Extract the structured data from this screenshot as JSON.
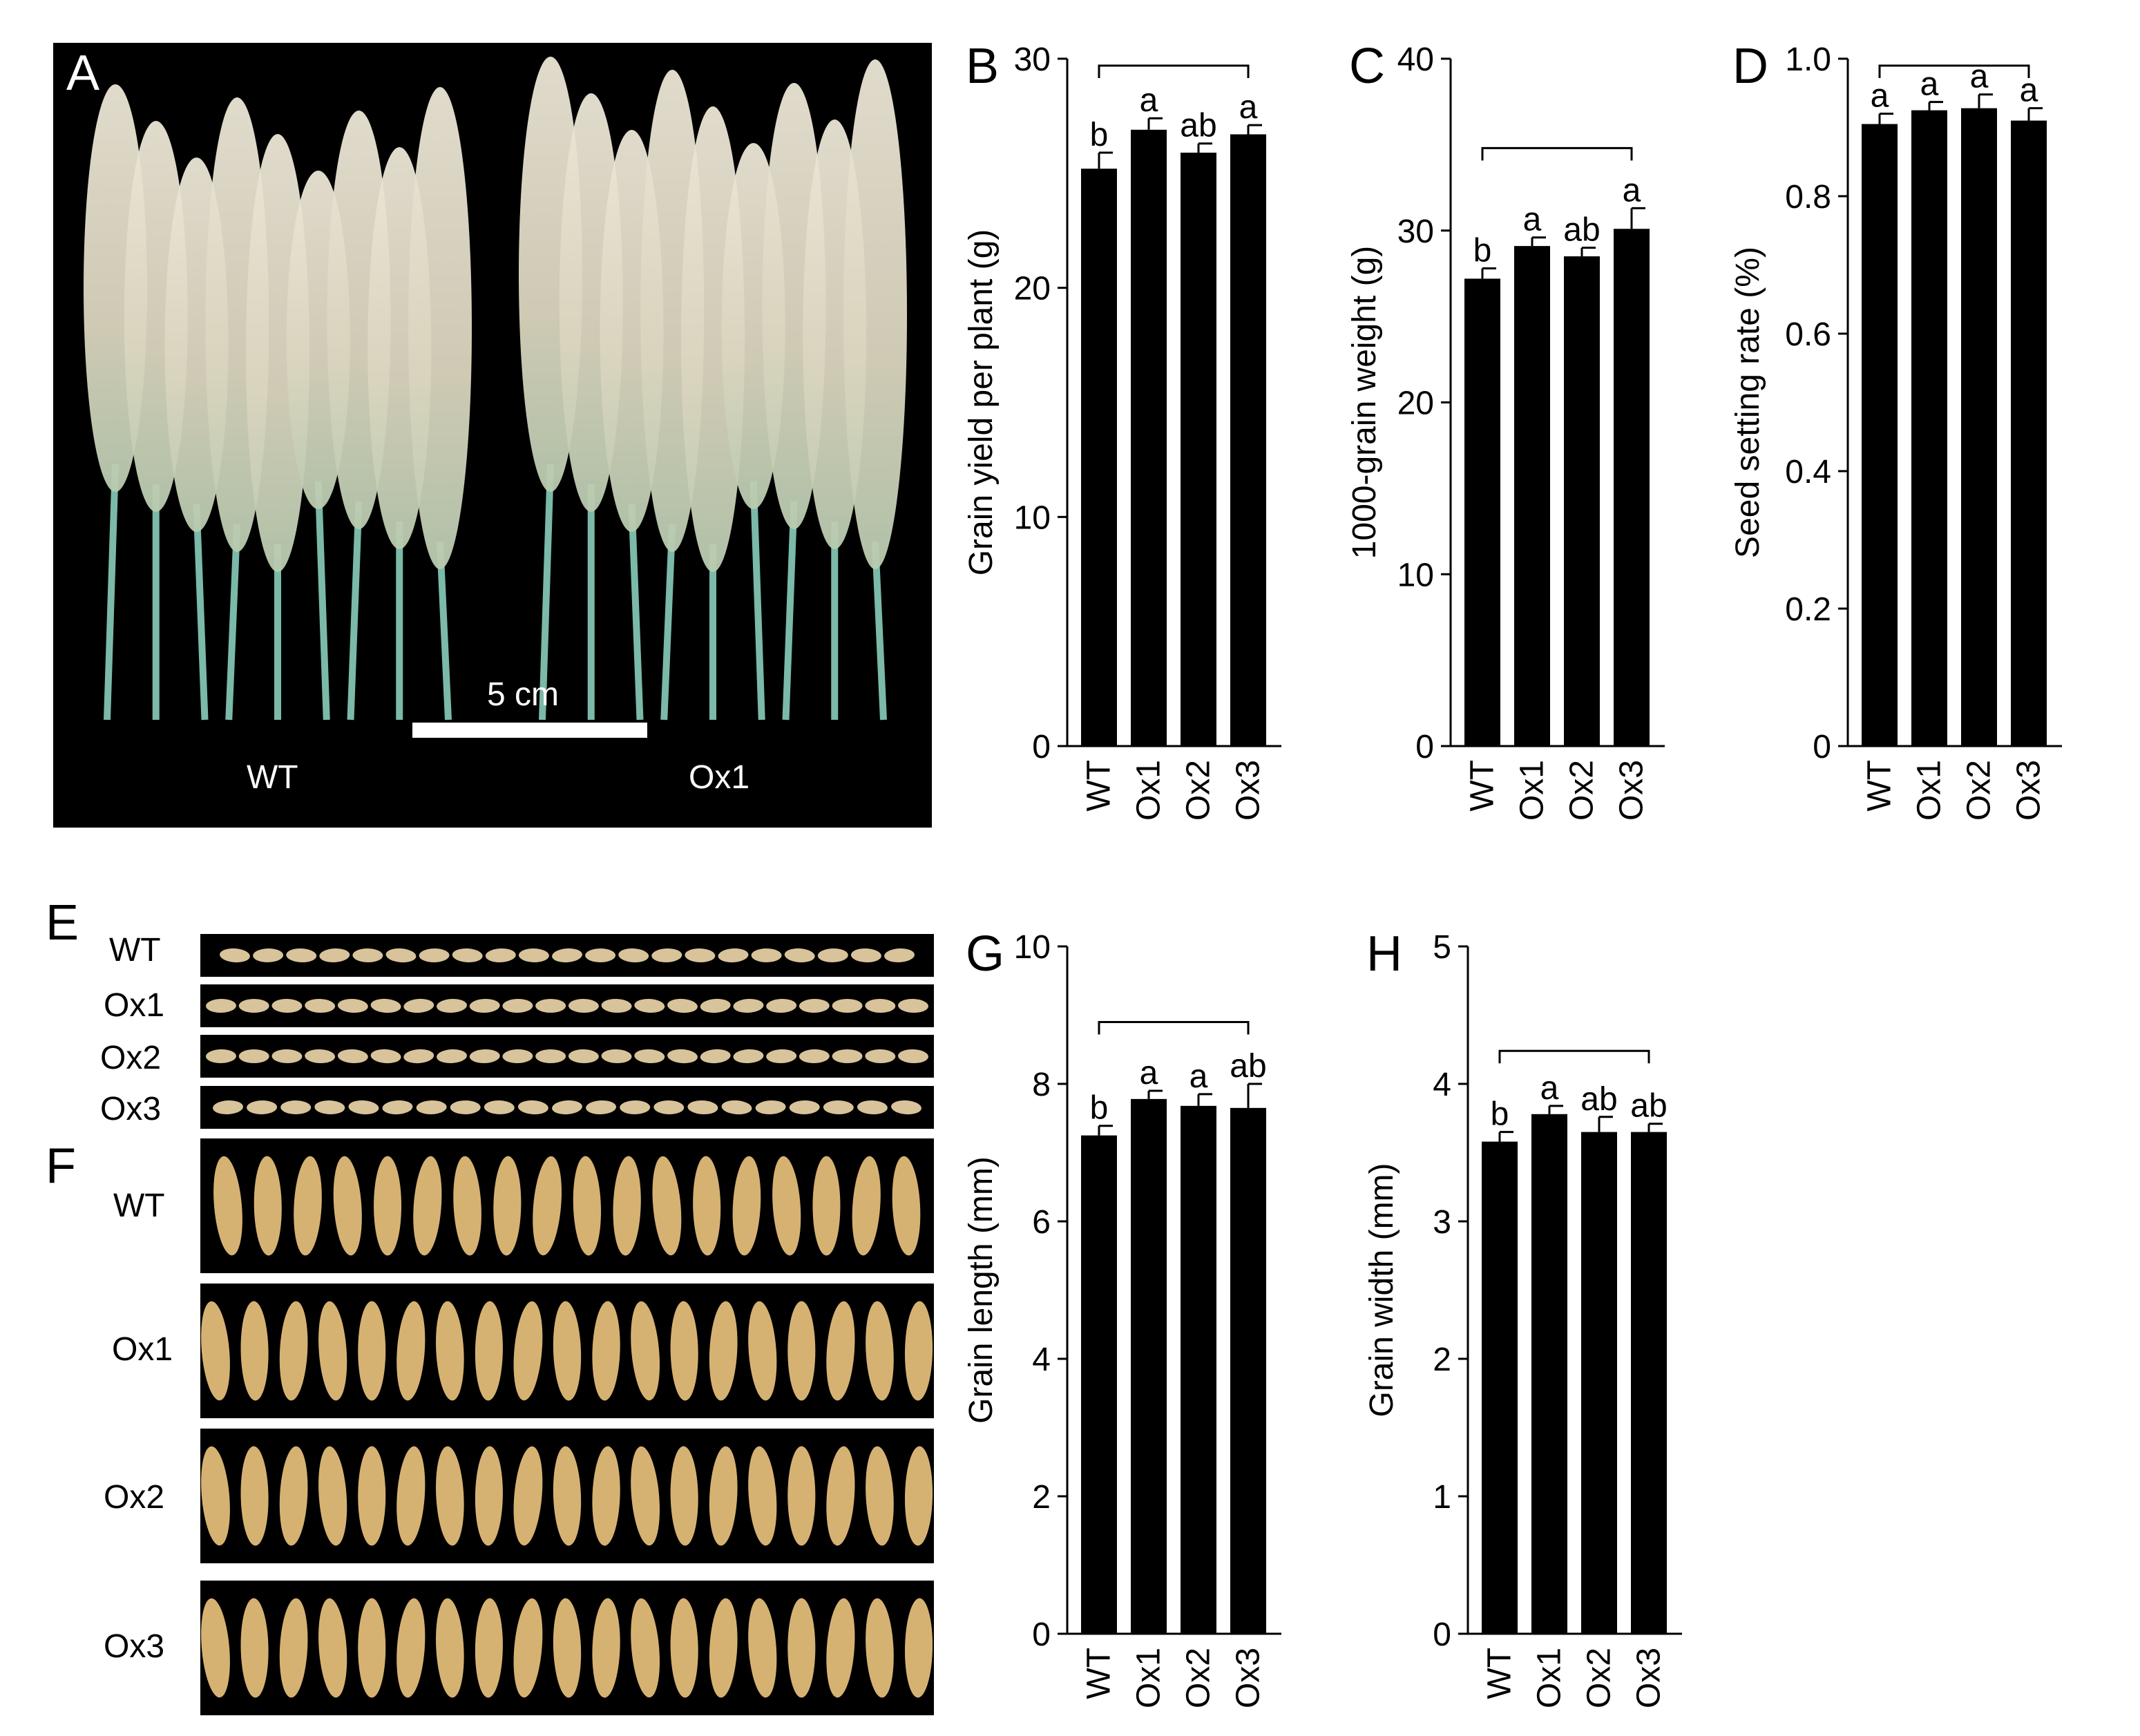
{
  "panels": {
    "A": {
      "letter": "A",
      "scale_bar_label": "5 cm",
      "caption_left": "WT",
      "caption_right": "Ox1"
    },
    "E": {
      "letter": "E",
      "rows": [
        "WT",
        "Ox1",
        "Ox2",
        "Ox3"
      ]
    },
    "F": {
      "letter": "F",
      "rows": [
        "WT",
        "Ox1",
        "Ox2",
        "Ox3"
      ]
    }
  },
  "colors": {
    "bar": "#000000",
    "photo_bg": "#000000",
    "grain_slender": "#d8c39a",
    "grain_wide": "#d6b272",
    "panicle": "#ddd6c4",
    "stem": "#7bb9a8"
  },
  "chart_data": [
    {
      "id": "B",
      "letter": "B",
      "type": "bar",
      "categories": [
        "WT",
        "Ox1",
        "Ox2",
        "Ox3"
      ],
      "values": [
        25.2,
        26.9,
        25.9,
        26.7
      ],
      "errors": [
        0.7,
        0.5,
        0.4,
        0.4
      ],
      "significance": [
        "b",
        "a",
        "ab",
        "a"
      ],
      "ylabel": "Grain yield per plant (g)",
      "ylim": [
        0,
        30
      ],
      "yticks": [
        "0",
        "10",
        "20",
        "30"
      ],
      "bracket_y": 29.7
    },
    {
      "id": "C",
      "letter": "C",
      "type": "bar",
      "categories": [
        "WT",
        "Ox1",
        "Ox2",
        "Ox3"
      ],
      "values": [
        27.2,
        29.1,
        28.5,
        30.1
      ],
      "errors": [
        0.6,
        0.5,
        0.5,
        1.2
      ],
      "significance": [
        "b",
        "a",
        "ab",
        "a"
      ],
      "ylabel": "1000-grain weight (g)",
      "ylim": [
        0,
        40
      ],
      "yticks": [
        "0",
        "10",
        "20",
        "30",
        "40"
      ],
      "bracket_y": 34.8
    },
    {
      "id": "D",
      "letter": "D",
      "type": "bar",
      "categories": [
        "WT",
        "Ox1",
        "Ox2",
        "Ox3"
      ],
      "values": [
        0.905,
        0.925,
        0.928,
        0.91
      ],
      "errors": [
        0.015,
        0.012,
        0.02,
        0.018
      ],
      "significance": [
        "a",
        "a",
        "a",
        "a"
      ],
      "ylabel": "Seed setting rate (%)",
      "ylim": [
        0,
        1.0
      ],
      "yticks": [
        "0",
        "0.2",
        "0.4",
        "0.6",
        "0.8",
        "1.0"
      ],
      "bracket_y": 0.99
    },
    {
      "id": "G",
      "letter": "G",
      "type": "bar",
      "categories": [
        "WT",
        "Ox1",
        "Ox2",
        "Ox3"
      ],
      "values": [
        7.25,
        7.78,
        7.68,
        7.65
      ],
      "errors": [
        0.14,
        0.12,
        0.17,
        0.35
      ],
      "significance": [
        "b",
        "a",
        "a",
        "ab"
      ],
      "ylabel": "Grain length (mm)",
      "ylim": [
        0,
        10
      ],
      "yticks": [
        "0",
        "2",
        "4",
        "6",
        "8",
        "10"
      ],
      "bracket_y": 8.9
    },
    {
      "id": "H",
      "letter": "H",
      "type": "bar",
      "categories": [
        "WT",
        "Ox1",
        "Ox2",
        "Ox3"
      ],
      "values": [
        3.58,
        3.78,
        3.65,
        3.65
      ],
      "errors": [
        0.07,
        0.06,
        0.11,
        0.06
      ],
      "significance": [
        "b",
        "a",
        "ab",
        "ab"
      ],
      "ylabel": "Grain width (mm)",
      "ylim": [
        0,
        5
      ],
      "yticks": [
        "0",
        "1",
        "2",
        "3",
        "4",
        "5"
      ],
      "bracket_y": 4.24
    }
  ]
}
